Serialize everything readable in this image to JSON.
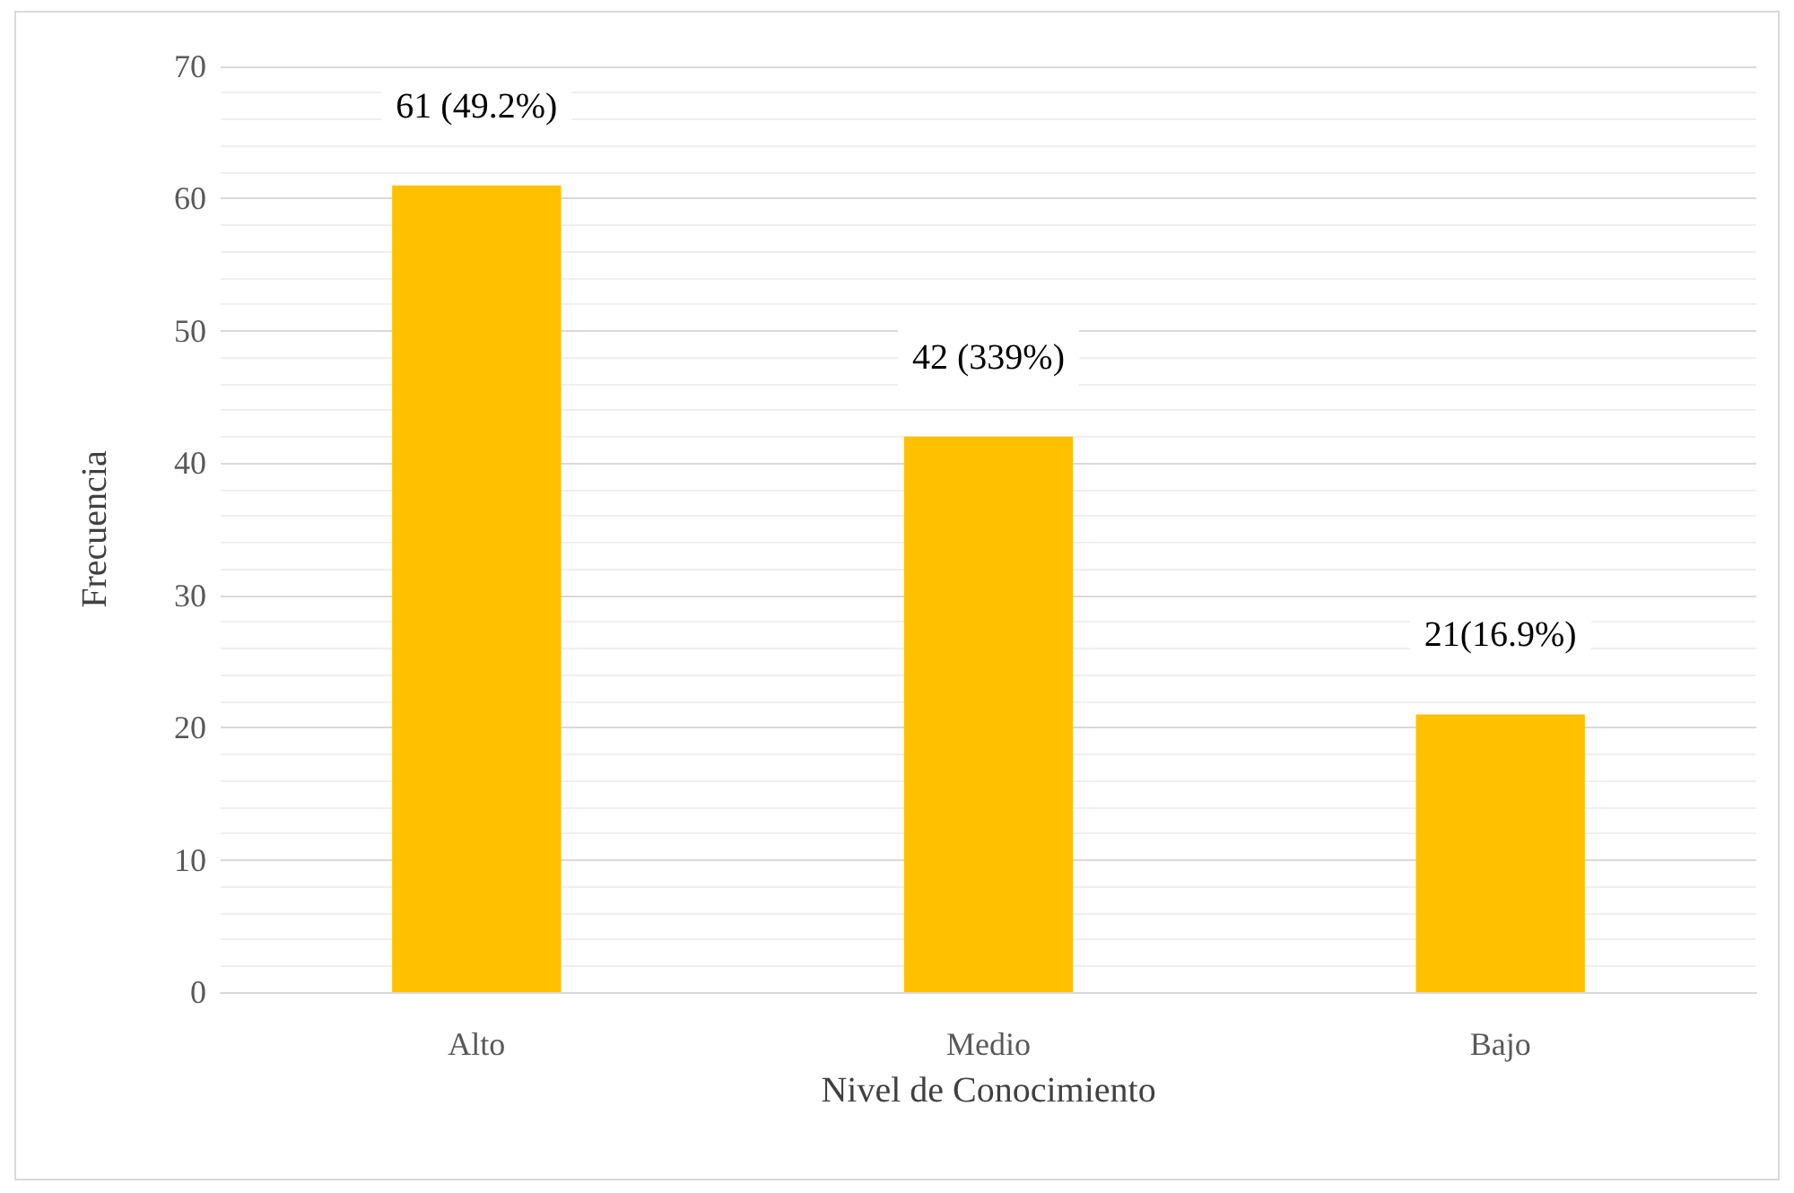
{
  "chart_data": {
    "type": "bar",
    "xlabel": "Nivel de Conocimiento",
    "ylabel": "Frecuencia",
    "categories": [
      "Alto",
      "Medio",
      "Bajo"
    ],
    "values": [
      61,
      42,
      21
    ],
    "value_labels": [
      "61 (49.2%)",
      "42 (339%)",
      "21(16.9%)"
    ],
    "color": "#ffc000",
    "ylim": [
      0,
      70
    ],
    "yticks": [
      0,
      10,
      20,
      30,
      40,
      50,
      60,
      70
    ],
    "grid": "y"
  }
}
